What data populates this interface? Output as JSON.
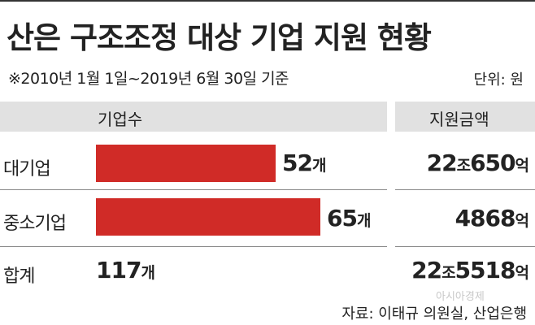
{
  "title": "산은 구조조정 대상 기업 지원 현황",
  "subtitle": "※2010년 1월 1일~2019년 6월 30일 기준",
  "unit": "단위: 원",
  "watermark": "아시아경제",
  "source": "자료: 이태규 의원실, 산업은행",
  "chart_data": {
    "type": "bar",
    "orientation": "horizontal",
    "columns": [
      "기업수",
      "지원금액"
    ],
    "categories": [
      "대기업",
      "중소기업"
    ],
    "values": [
      52,
      65
    ],
    "count_suffix": "개",
    "amounts": [
      {
        "number": "22",
        "unit1": "조",
        "number2": "650",
        "unit2": "억"
      },
      {
        "number": "",
        "unit1": "",
        "number2": "4868",
        "unit2": "억"
      }
    ],
    "total": {
      "label": "합계",
      "count": "117",
      "count_suffix": "개",
      "amount": {
        "number": "22",
        "unit1": "조",
        "number2": "5518",
        "unit2": "억"
      }
    },
    "xmax": 65,
    "colors": {
      "bar": "#d02b27",
      "header": "#e1e1e1"
    }
  }
}
